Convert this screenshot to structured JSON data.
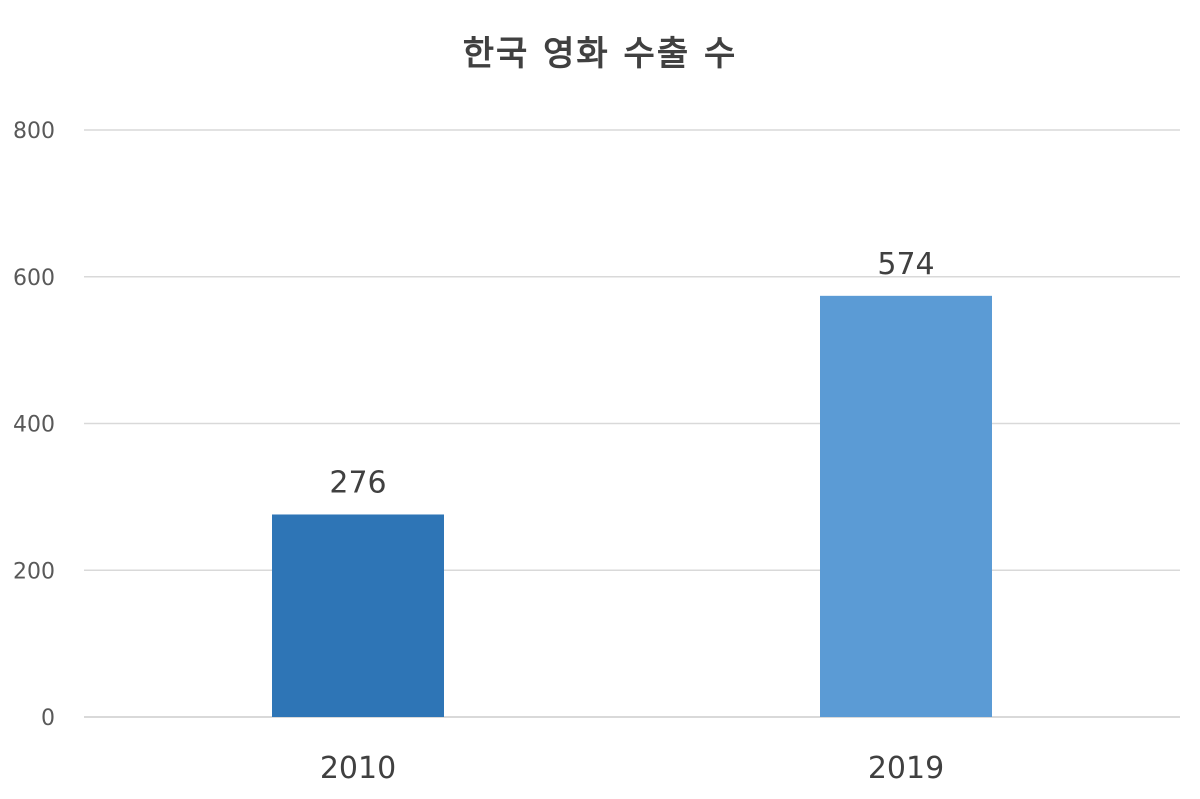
{
  "chart_data": {
    "type": "bar",
    "title": "한국 영화 수출 수",
    "categories": [
      "2010",
      "2019"
    ],
    "values": [
      276,
      574
    ],
    "colors": [
      "#2e75b6",
      "#5b9bd5"
    ],
    "ylim": [
      0,
      800
    ],
    "yticks": [
      0,
      200,
      400,
      600,
      800
    ],
    "grid": true,
    "data_labels": true,
    "legend": "none"
  }
}
